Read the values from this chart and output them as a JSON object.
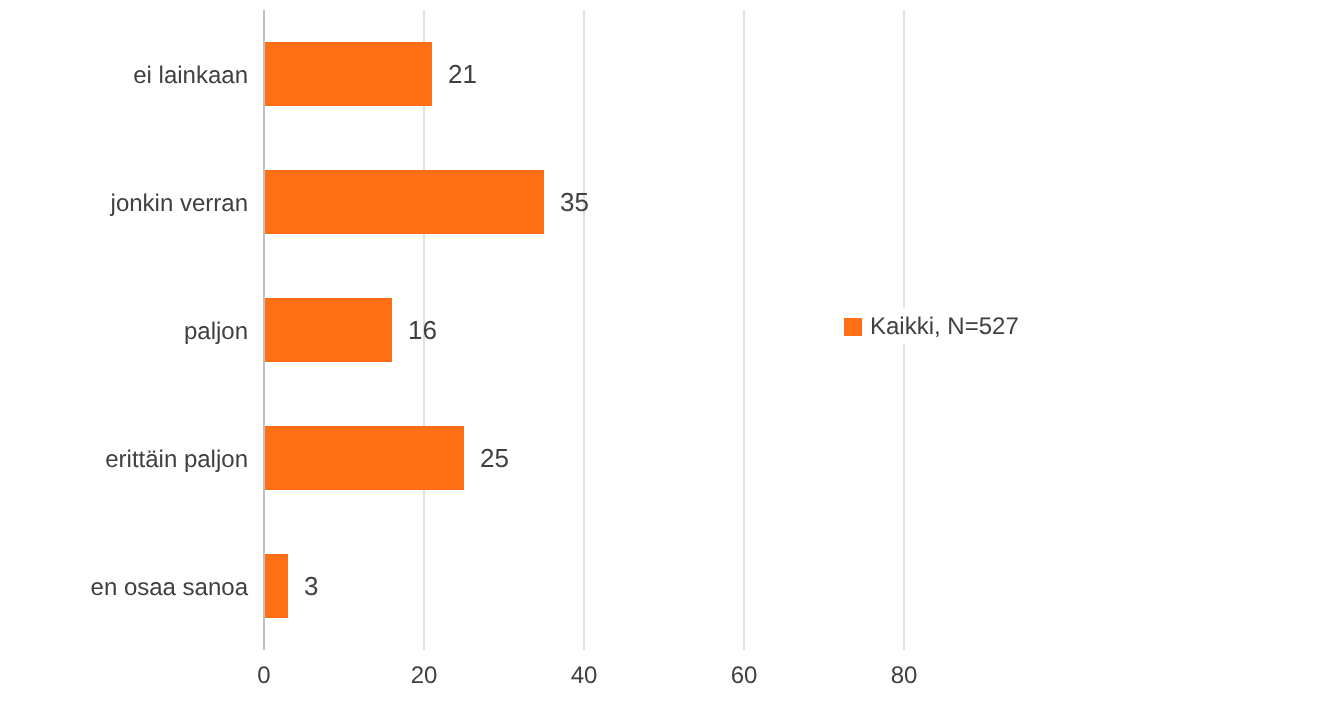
{
  "chart_data": {
    "type": "bar",
    "orientation": "horizontal",
    "categories": [
      "ei lainkaan",
      "jonkin verran",
      "paljon",
      "erittäin paljon",
      "en osaa sanoa"
    ],
    "series": [
      {
        "name": "Kaikki, N=527",
        "color": "#ff6f15",
        "values": [
          21,
          35,
          16,
          25,
          3
        ]
      }
    ],
    "xlim": [
      0,
      80
    ],
    "xticks": [
      0,
      20,
      40,
      60,
      80
    ],
    "grid": "x",
    "legend": "right",
    "data_labels": true
  }
}
